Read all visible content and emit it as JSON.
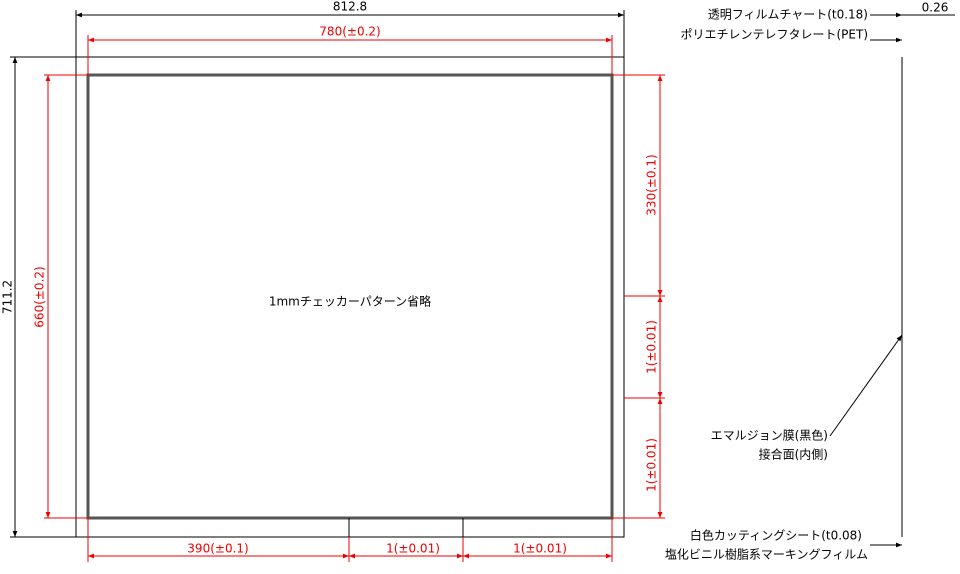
{
  "dimensions": {
    "outer_width": "812.8",
    "inner_width": "780(±0.2)",
    "outer_height": "711.2",
    "inner_height": "660(±0.2)",
    "right_top": "330(±0.1)",
    "right_mid": "1(±0.01)",
    "right_bottom": "1(±0.01)",
    "bottom_left": "390(±0.1)",
    "bottom_mid": "1(±0.01)",
    "bottom_right": "1(±0.01)",
    "thickness": "0.26"
  },
  "center_note": "1mmチェッカーパターン省略",
  "layers": {
    "top": [
      "透明フィルムチャート(t0.18)",
      "ポリエチレンテレフタレート(PET)"
    ],
    "emulsion": [
      "エマルジョン膜(黒色)",
      "接合面(内側)"
    ],
    "bottom": [
      "白色カッティングシート(t0.08)",
      "塩化ビニル樹脂系マーキングフィルム"
    ]
  }
}
